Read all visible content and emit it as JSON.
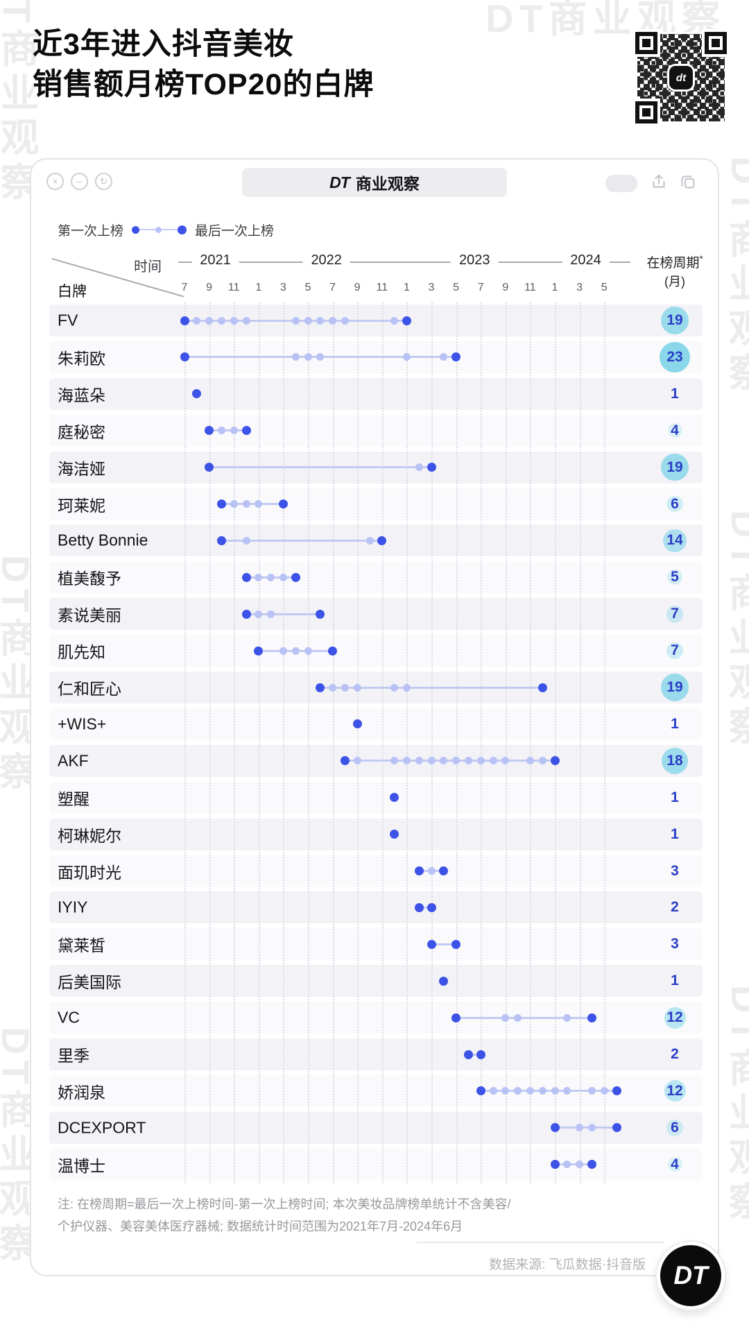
{
  "page": {
    "title_line1": "近3年进入抖音美妆",
    "title_line2": "销售额月榜TOP20的白牌"
  },
  "watermark": {
    "text": "DT商业观察"
  },
  "icons": {
    "close": "×",
    "minimize": "–",
    "refresh": "↻"
  },
  "window": {
    "app_title_dt": "DT",
    "app_title_text": "商业观察"
  },
  "legend": {
    "first_label": "第一次上榜",
    "last_label": "最后一次上榜"
  },
  "axis": {
    "time_label": "时间",
    "brand_label": "白牌",
    "duration_label": "在榜周期",
    "duration_star": "*",
    "duration_unit": "(月)"
  },
  "colors": {
    "dot_dark": "#3D52E6",
    "dot_light": "#B9C2F4",
    "line": "#C3CAF2",
    "badge_fill": "#7DD3E8",
    "badge_number": "#2A3EC6"
  },
  "chart_data": {
    "type": "scatter",
    "subtype": "timeline-dot-plot",
    "title": "近3年进入抖音美妆销售额月榜TOP20的白牌",
    "xlabel": "时间",
    "ylabel": "白牌",
    "x_range": {
      "start_month": "2021-07",
      "end_month": "2024-06",
      "month_index_zero": "2021-07"
    },
    "month_ticks": [
      "7",
      "9",
      "11",
      "1",
      "3",
      "5",
      "7",
      "9",
      "11",
      "1",
      "3",
      "5",
      "7",
      "9",
      "11",
      "1",
      "3",
      "5"
    ],
    "years": [
      {
        "label": "2021",
        "center_index": 2.5
      },
      {
        "label": "2022",
        "center_index": 11.5
      },
      {
        "label": "2023",
        "center_index": 23.5
      },
      {
        "label": "2024",
        "center_index": 32.5
      }
    ],
    "duration_column_header": "在榜周期*(月)",
    "rows": [
      {
        "brand": "FV",
        "start": 0,
        "end": 18,
        "light": [
          1,
          2,
          3,
          4,
          5,
          9,
          10,
          11,
          12,
          13,
          17
        ],
        "duration": 19
      },
      {
        "brand": "朱莉欧",
        "start": 0,
        "end": 22,
        "light": [
          9,
          10,
          11,
          18,
          21
        ],
        "duration": 23
      },
      {
        "brand": "海蓝朵",
        "start": 1,
        "end": 1,
        "light": [],
        "duration": 1
      },
      {
        "brand": "庭秘密",
        "start": 2,
        "end": 5,
        "light": [
          3,
          4
        ],
        "duration": 4
      },
      {
        "brand": "海洁娅",
        "start": 2,
        "end": 20,
        "light": [
          19
        ],
        "duration": 19
      },
      {
        "brand": "珂莱妮",
        "start": 3,
        "end": 8,
        "light": [
          4,
          5,
          6
        ],
        "duration": 6
      },
      {
        "brand": "Betty Bonnie",
        "start": 3,
        "end": 16,
        "light": [
          5,
          15
        ],
        "duration": 14
      },
      {
        "brand": "植美馥予",
        "start": 5,
        "end": 9,
        "light": [
          6,
          7,
          8
        ],
        "duration": 5
      },
      {
        "brand": "素说美丽",
        "start": 5,
        "end": 11,
        "light": [
          6,
          7
        ],
        "duration": 7
      },
      {
        "brand": "肌先知",
        "start": 6,
        "end": 12,
        "light": [
          8,
          9,
          10
        ],
        "duration": 7
      },
      {
        "brand": "仁和匠心",
        "start": 11,
        "end": 29,
        "light": [
          12,
          13,
          14,
          17,
          18
        ],
        "duration": 19
      },
      {
        "brand": "+WIS+",
        "start": 14,
        "end": 14,
        "light": [],
        "duration": 1
      },
      {
        "brand": "AKF",
        "start": 13,
        "end": 30,
        "light": [
          14,
          17,
          18,
          19,
          20,
          21,
          22,
          23,
          24,
          25,
          26,
          28,
          29
        ],
        "duration": 18
      },
      {
        "brand": "塑醒",
        "start": 17,
        "end": 17,
        "light": [],
        "duration": 1
      },
      {
        "brand": "柯琳妮尔",
        "start": 17,
        "end": 17,
        "light": [],
        "duration": 1
      },
      {
        "brand": "面玑时光",
        "start": 19,
        "end": 21,
        "light": [
          20
        ],
        "duration": 3
      },
      {
        "brand": "IYIY",
        "start": 19,
        "end": 20,
        "light": [],
        "duration": 2
      },
      {
        "brand": "黛莱皙",
        "start": 20,
        "end": 22,
        "light": [],
        "duration": 3
      },
      {
        "brand": "后美国际",
        "start": 21,
        "end": 21,
        "light": [],
        "duration": 1
      },
      {
        "brand": "VC",
        "start": 22,
        "end": 33,
        "light": [
          26,
          27,
          31
        ],
        "duration": 12
      },
      {
        "brand": "里季",
        "start": 23,
        "end": 24,
        "light": [],
        "duration": 2
      },
      {
        "brand": "娇润泉",
        "start": 24,
        "end": 35,
        "light": [
          25,
          26,
          27,
          28,
          29,
          30,
          31,
          33,
          34
        ],
        "duration": 12
      },
      {
        "brand": "DCEXPORT",
        "start": 30,
        "end": 35,
        "light": [
          32,
          33
        ],
        "duration": 6
      },
      {
        "brand": "温博士",
        "start": 30,
        "end": 33,
        "light": [
          31,
          32
        ],
        "duration": 4
      }
    ]
  },
  "note": {
    "line1": "注: 在榜周期=最后一次上榜时间-第一次上榜时间; 本次美妆品牌榜单统计不含美容/",
    "line2": "个护仪器、美容美体医疗器械; 数据统计时间范围为2021年7月-2024年6月"
  },
  "footer": {
    "source": "数据来源: 飞瓜数据·抖音版",
    "logo_text": "DT"
  }
}
